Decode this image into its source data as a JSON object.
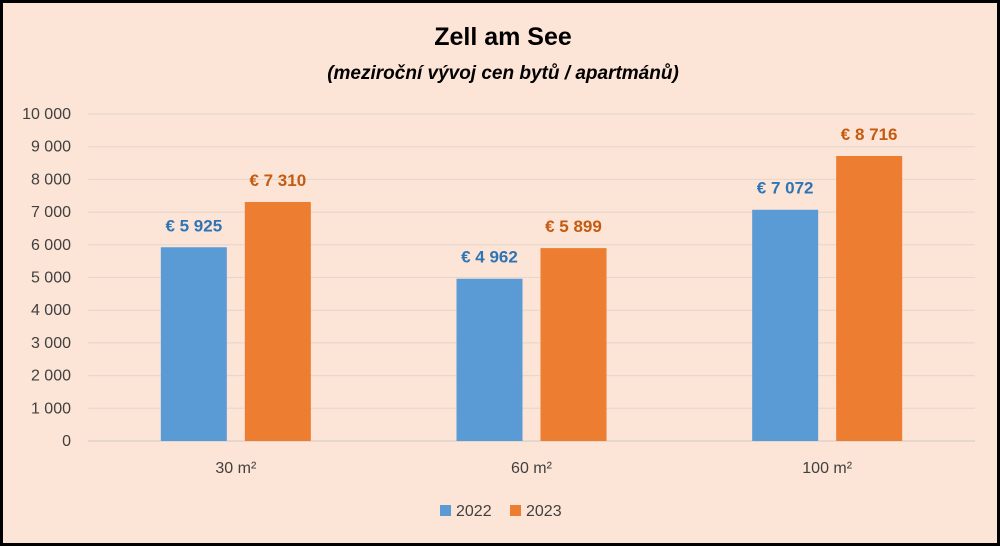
{
  "chart_data": {
    "type": "bar",
    "title": "Zell am See",
    "subtitle": "(meziroční vývoj cen bytů / apartmánů)",
    "categories": [
      "30 m²",
      "60 m²",
      "100 m²"
    ],
    "series": [
      {
        "name": "2022",
        "values": [
          5925,
          4962,
          7072
        ],
        "labels": [
          "€ 5 925",
          "€ 4 962",
          "€ 7 072"
        ],
        "color": "#5b9bd5",
        "label_color": "#2e75b6"
      },
      {
        "name": "2023",
        "values": [
          7310,
          5899,
          8716
        ],
        "labels": [
          "€ 7 310",
          "€ 5 899",
          "€ 8 716"
        ],
        "color": "#ed7d31",
        "label_color": "#c55a11"
      }
    ],
    "ylim": [
      0,
      10000
    ],
    "yticks": [
      0,
      1000,
      2000,
      3000,
      4000,
      5000,
      6000,
      7000,
      8000,
      9000,
      10000
    ],
    "ytick_labels": [
      "0",
      "1 000",
      "2 000",
      "3 000",
      "4 000",
      "5 000",
      "6 000",
      "7 000",
      "8 000",
      "9 000",
      "10 000"
    ],
    "grid": true,
    "legend_position": "bottom"
  }
}
